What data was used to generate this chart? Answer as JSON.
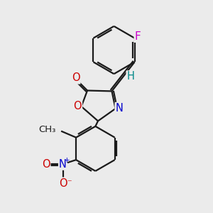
{
  "bg_color": "#ebebeb",
  "bond_color": "#1a1a1a",
  "bond_width": 1.6,
  "atom_colors": {
    "F": "#cc00cc",
    "O": "#cc0000",
    "N": "#0000cc",
    "H": "#008888",
    "C": "#1a1a1a"
  },
  "font_size": 10.5
}
